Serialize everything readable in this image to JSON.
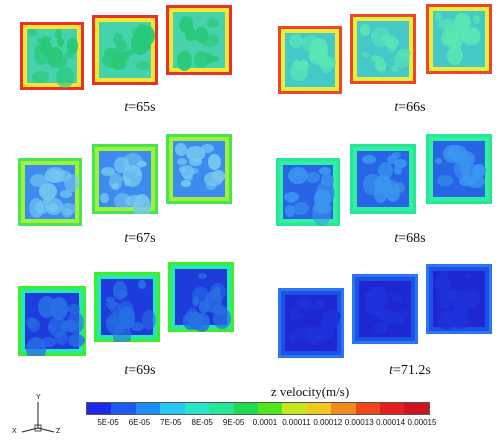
{
  "captions": {
    "t65": "=65s",
    "t66": "=66s",
    "t67": "=67s",
    "t68": "=68s",
    "t69": "=69s",
    "t712": "=71.2s",
    "t_symbol": "t"
  },
  "colorbar": {
    "title": "z velocity(m/s)",
    "ticks": [
      "5E-05",
      "6E-05",
      "7E-05",
      "8E-05",
      "9E-05",
      "0.0001",
      "0.00011",
      "0.00012",
      "0.00013",
      "0.00014",
      "0.00015"
    ],
    "colors": [
      "#1e28e6",
      "#1e5af0",
      "#1e8cf5",
      "#28c8f0",
      "#28e6c8",
      "#28e696",
      "#1edc50",
      "#50e61e",
      "#c8e61e",
      "#f0c81e",
      "#f08c1e",
      "#f0461e",
      "#e61e1e",
      "#d0141e"
    ]
  },
  "axis_triad": {
    "y": "Y",
    "x": "X",
    "z": "Z"
  },
  "snapshot_palettes": {
    "t65": {
      "border": "#e63228",
      "ring": "#f5e632",
      "fill": "#46d2aa",
      "blob": "#28c878"
    },
    "t66": {
      "border": "#f04628",
      "ring": "#e6f03c",
      "fill": "#46c8c8",
      "blob": "#5ae6b4"
    },
    "t67": {
      "border": "#46e650",
      "ring": "#a0f03c",
      "fill": "#3c8cf0",
      "blob": "#78c8f0"
    },
    "t68": {
      "border": "#28e696",
      "ring": "#32f0a0",
      "fill": "#2864e6",
      "blob": "#3c96f0"
    },
    "t69": {
      "border": "#3cf028",
      "ring": "#28e6b4",
      "fill": "#1e3cdc",
      "blob": "#2870e6"
    },
    "t712": {
      "border": "#2a78f0",
      "ring": "#1e50e6",
      "fill": "#1e28d2",
      "blob": "#1e32dc"
    }
  }
}
